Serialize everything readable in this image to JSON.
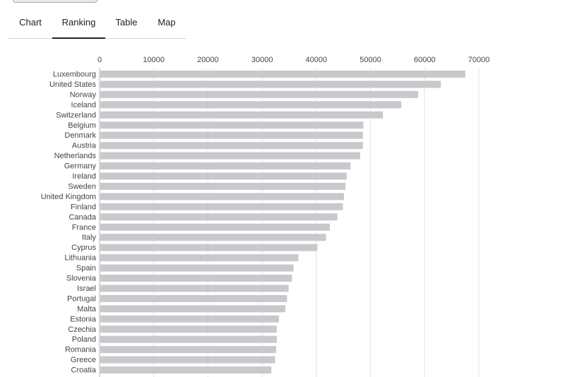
{
  "tabs": [
    {
      "label": "Chart",
      "active": false
    },
    {
      "label": "Ranking",
      "active": true
    },
    {
      "label": "Table",
      "active": false
    },
    {
      "label": "Map",
      "active": false
    }
  ],
  "colors": {
    "bar": "#c8c9cc",
    "grid": "#e3e3e3",
    "axis": "#b0b0b0",
    "tab_underline": "#222222"
  },
  "chart_data": {
    "type": "bar",
    "orientation": "horizontal",
    "xlim": [
      0,
      70000
    ],
    "xticks": [
      0,
      10000,
      20000,
      30000,
      40000,
      50000,
      60000,
      70000
    ],
    "grid": true,
    "categories": [
      "Luxembourg",
      "United States",
      "Norway",
      "Iceland",
      "Switzerland",
      "Belgium",
      "Denmark",
      "Austria",
      "Netherlands",
      "Germany",
      "Ireland",
      "Sweden",
      "United Kingdom",
      "Finland",
      "Canada",
      "France",
      "Italy",
      "Cyprus",
      "Lithuania",
      "Spain",
      "Slovenia",
      "Israel",
      "Portugal",
      "Malta",
      "Estonia",
      "Czechia",
      "Poland",
      "Romania",
      "Greece",
      "Croatia"
    ],
    "values": [
      67500,
      63000,
      58800,
      55700,
      52300,
      48700,
      48600,
      48600,
      48100,
      46300,
      45600,
      45400,
      45100,
      44900,
      43900,
      42500,
      41800,
      40200,
      36700,
      35800,
      35500,
      34900,
      34600,
      34300,
      33100,
      32700,
      32700,
      32600,
      32400,
      31700
    ]
  }
}
